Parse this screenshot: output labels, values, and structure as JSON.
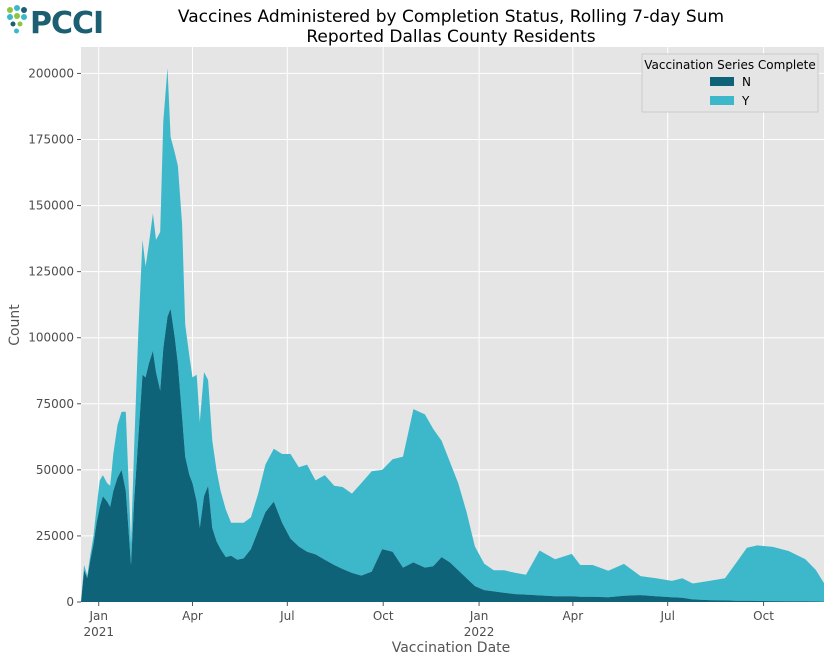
{
  "logo": {
    "text": "PCCI"
  },
  "chart_data": {
    "type": "area",
    "stacked": true,
    "title": "Vaccines Administered by Completion Status, Rolling 7-day Sum",
    "subtitle": "Reported Dallas County Residents",
    "xlabel": "Vaccination Date",
    "ylabel": "Count",
    "ylim": [
      0,
      210000
    ],
    "yticks": [
      0,
      25000,
      50000,
      75000,
      100000,
      125000,
      150000,
      175000,
      200000
    ],
    "xlim": [
      "2020-12-15",
      "2022-11-28"
    ],
    "xticks": [
      {
        "date": "2021-01-01",
        "label": "Jan",
        "sublabel": "2021"
      },
      {
        "date": "2021-04-01",
        "label": "Apr",
        "sublabel": ""
      },
      {
        "date": "2021-07-01",
        "label": "Jul",
        "sublabel": ""
      },
      {
        "date": "2021-10-01",
        "label": "Oct",
        "sublabel": ""
      },
      {
        "date": "2022-01-01",
        "label": "Jan",
        "sublabel": "2022"
      },
      {
        "date": "2022-04-01",
        "label": "Apr",
        "sublabel": ""
      },
      {
        "date": "2022-07-01",
        "label": "Jul",
        "sublabel": ""
      },
      {
        "date": "2022-10-01",
        "label": "Oct",
        "sublabel": ""
      }
    ],
    "grid": true,
    "legend": {
      "title": "Vaccination Series Complete",
      "placement": "top-right"
    },
    "x": [
      "2020-12-15",
      "2020-12-18",
      "2020-12-21",
      "2020-12-24",
      "2020-12-27",
      "2020-12-30",
      "2021-01-02",
      "2021-01-05",
      "2021-01-09",
      "2021-01-12",
      "2021-01-15",
      "2021-01-19",
      "2021-01-23",
      "2021-01-27",
      "2021-02-01",
      "2021-02-04",
      "2021-02-08",
      "2021-02-12",
      "2021-02-15",
      "2021-02-18",
      "2021-02-22",
      "2021-02-25",
      "2021-03-01",
      "2021-03-04",
      "2021-03-08",
      "2021-03-11",
      "2021-03-15",
      "2021-03-18",
      "2021-03-22",
      "2021-03-25",
      "2021-03-29",
      "2021-04-01",
      "2021-04-05",
      "2021-04-08",
      "2021-04-12",
      "2021-04-16",
      "2021-04-20",
      "2021-04-24",
      "2021-04-28",
      "2021-05-03",
      "2021-05-08",
      "2021-05-14",
      "2021-05-20",
      "2021-05-27",
      "2021-06-03",
      "2021-06-10",
      "2021-06-18",
      "2021-06-26",
      "2021-07-04",
      "2021-07-12",
      "2021-07-20",
      "2021-07-28",
      "2021-08-06",
      "2021-08-15",
      "2021-08-23",
      "2021-09-01",
      "2021-09-10",
      "2021-09-20",
      "2021-09-30",
      "2021-10-10",
      "2021-10-20",
      "2021-10-30",
      "2021-11-10",
      "2021-11-18",
      "2021-11-26",
      "2021-12-04",
      "2021-12-12",
      "2021-12-20",
      "2021-12-28",
      "2022-01-06",
      "2022-01-15",
      "2022-01-25",
      "2022-02-05",
      "2022-02-15",
      "2022-02-28",
      "2022-03-15",
      "2022-03-31",
      "2022-04-08",
      "2022-04-20",
      "2022-05-05",
      "2022-05-20",
      "2022-06-05",
      "2022-06-20",
      "2022-07-05",
      "2022-07-15",
      "2022-07-25",
      "2022-08-10",
      "2022-08-25",
      "2022-09-05",
      "2022-09-15",
      "2022-09-25",
      "2022-10-10",
      "2022-10-25",
      "2022-11-10",
      "2022-11-20",
      "2022-11-28"
    ],
    "series": [
      {
        "name": "N",
        "color": "#0e6379",
        "values": [
          0,
          12000,
          9000,
          16000,
          22000,
          30000,
          36000,
          40000,
          38000,
          36000,
          42000,
          47000,
          50000,
          42000,
          14000,
          38000,
          62000,
          86000,
          85000,
          90000,
          95000,
          87000,
          80000,
          96000,
          108000,
          111000,
          100000,
          90000,
          70000,
          55000,
          48000,
          45000,
          38000,
          28000,
          40000,
          44000,
          28000,
          23000,
          20000,
          17000,
          17500,
          16000,
          16500,
          20000,
          27000,
          34000,
          38000,
          30000,
          24000,
          21000,
          19000,
          18000,
          16000,
          14000,
          12500,
          11000,
          10000,
          11500,
          20000,
          19000,
          13000,
          15000,
          13000,
          13500,
          17000,
          15000,
          12000,
          9000,
          6000,
          4500,
          4000,
          3500,
          3000,
          2800,
          2500,
          2200,
          2200,
          2000,
          2000,
          1800,
          2400,
          2600,
          2200,
          1800,
          1600,
          1000,
          700,
          600,
          500,
          500,
          400,
          350,
          300,
          250,
          200,
          150
        ]
      },
      {
        "name": "Y",
        "color": "#3db8cb",
        "values": [
          0,
          2000,
          1000,
          2000,
          3000,
          6000,
          10000,
          8000,
          7000,
          8000,
          14000,
          20000,
          22000,
          30000,
          8000,
          20000,
          40000,
          51000,
          42000,
          45000,
          52000,
          50000,
          60000,
          86000,
          94000,
          65000,
          70000,
          75000,
          73000,
          50000,
          45000,
          40000,
          48000,
          40000,
          47000,
          40000,
          33000,
          27000,
          22000,
          18000,
          12500,
          14000,
          13500,
          12000,
          14000,
          18000,
          20000,
          26000,
          32000,
          30000,
          33000,
          28000,
          32000,
          30000,
          31000,
          30000,
          35000,
          38000,
          30000,
          35000,
          42000,
          58000,
          58000,
          52000,
          44000,
          38000,
          33000,
          25000,
          15000,
          10000,
          8000,
          8500,
          8000,
          7500,
          17000,
          14000,
          16000,
          12000,
          12000,
          10000,
          12000,
          7200,
          6800,
          6200,
          7400,
          6000,
          7300,
          8400,
          14500,
          20000,
          21000,
          20500,
          19000,
          16000,
          12000,
          7000
        ]
      }
    ]
  }
}
